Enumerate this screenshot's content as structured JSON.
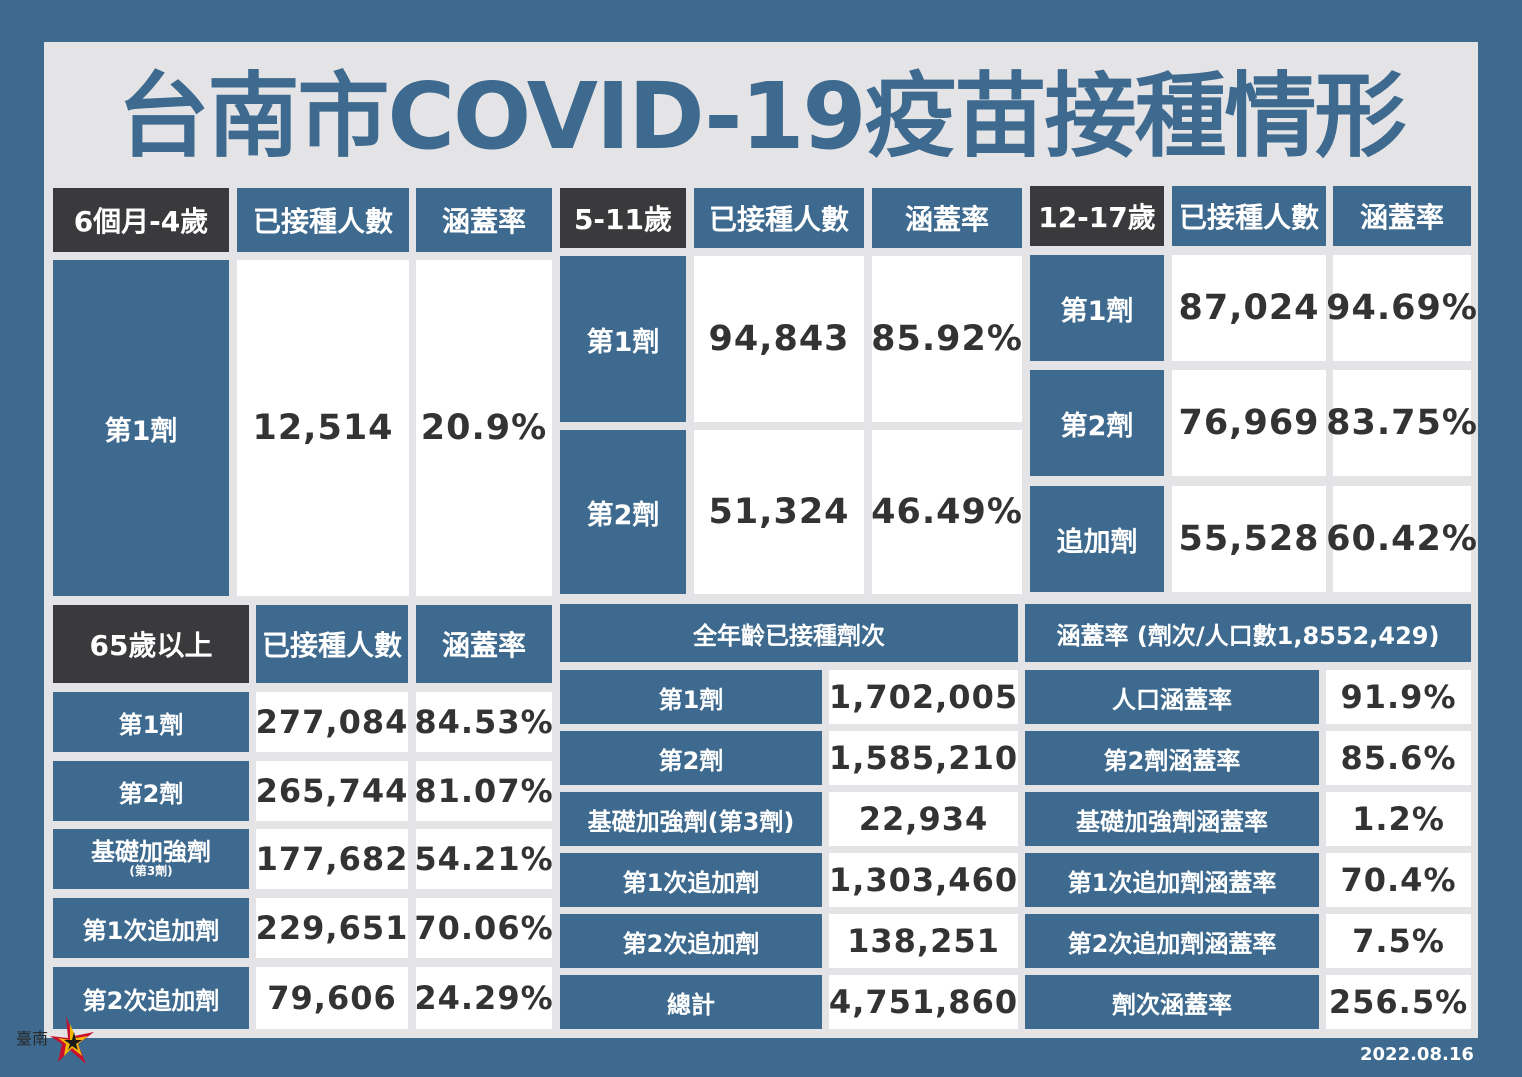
{
  "title": "台南市COVID-19疫苗接種情形",
  "colors": {
    "background": "#3d6a8e",
    "panel": "#e4e3e5",
    "dark_header": "#3a3a3c",
    "blue_cell": "#3d6a8e",
    "white_cell": "#ffffff"
  },
  "date": "2022.08.16",
  "logo_text": "臺南",
  "common": {
    "count_header": "已接種人數",
    "rate_header": "涵蓋率"
  },
  "infant": {
    "header": "6個月-4歲",
    "rows": [
      {
        "label": "第1劑",
        "count": "12,514",
        "rate": "20.9%"
      }
    ]
  },
  "child": {
    "header": "5-11歲",
    "rows": [
      {
        "label": "第1劑",
        "count": "94,843",
        "rate": "85.92%"
      },
      {
        "label": "第2劑",
        "count": "51,324",
        "rate": "46.49%"
      }
    ]
  },
  "teen": {
    "header": "12-17歲",
    "rows": [
      {
        "label": "第1劑",
        "count": "87,024",
        "rate": "94.69%"
      },
      {
        "label": "第2劑",
        "count": "76,969",
        "rate": "83.75%"
      },
      {
        "label": "追加劑",
        "count": "55,528",
        "rate": "60.42%"
      }
    ]
  },
  "senior": {
    "header": "65歲以上",
    "rows": [
      {
        "label": "第1劑",
        "count": "277,084",
        "rate": "84.53%"
      },
      {
        "label": "第2劑",
        "count": "265,744",
        "rate": "81.07%"
      },
      {
        "label": "基礎加強劑",
        "sub": "(第3劑)",
        "count": "177,682",
        "rate": "54.21%"
      },
      {
        "label": "第1次追加劑",
        "count": "229,651",
        "rate": "70.06%"
      },
      {
        "label": "第2次追加劑",
        "count": "79,606",
        "rate": "24.29%"
      }
    ]
  },
  "all_ages": {
    "header": "全年齡已接種劑次",
    "rows": [
      {
        "label": "第1劑",
        "value": "1,702,005"
      },
      {
        "label": "第2劑",
        "value": "1,585,210"
      },
      {
        "label": "基礎加強劑(第3劑)",
        "value": "22,934"
      },
      {
        "label": "第1次追加劑",
        "value": "1,303,460"
      },
      {
        "label": "第2次追加劑",
        "value": "138,251"
      },
      {
        "label": "總計",
        "value": "4,751,860"
      }
    ]
  },
  "coverage": {
    "header": "涵蓋率 (劑次/人口數1,8552,429)",
    "rows": [
      {
        "label": "人口涵蓋率",
        "value": "91.9%"
      },
      {
        "label": "第2劑涵蓋率",
        "value": "85.6%"
      },
      {
        "label": "基礎加強劑涵蓋率",
        "value": "1.2%"
      },
      {
        "label": "第1次追加劑涵蓋率",
        "value": "70.4%"
      },
      {
        "label": "第2次追加劑涵蓋率",
        "value": "7.5%"
      },
      {
        "label": "劑次涵蓋率",
        "value": "256.5%"
      }
    ]
  }
}
